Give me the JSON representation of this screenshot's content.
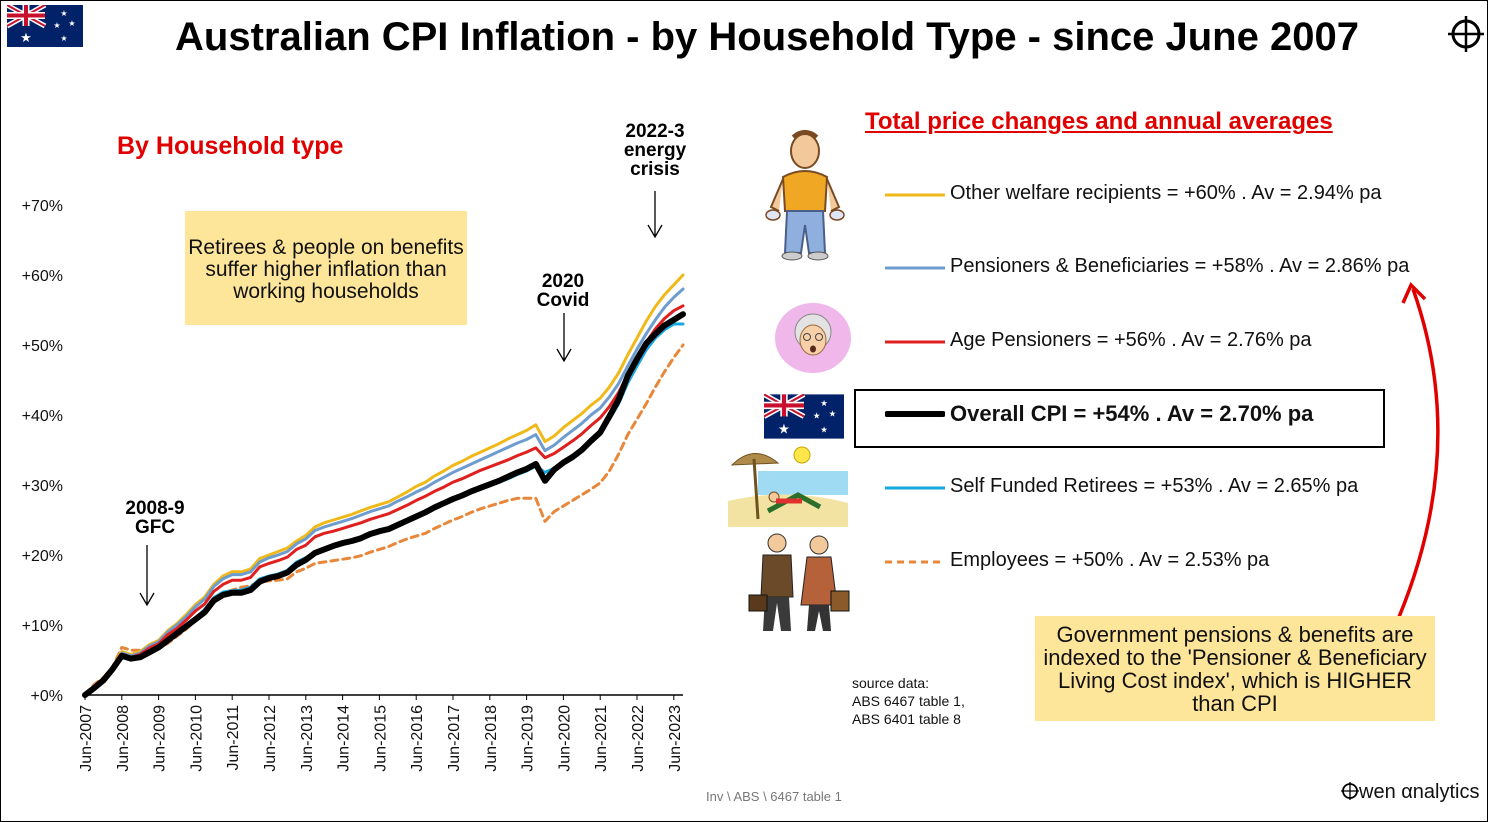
{
  "title": "Australian CPI Inflation - by Household Type - since June 2007",
  "subtitle": "By Household type",
  "callout_left": "Retirees & people on benefits suffer higher inflation than working households",
  "events": {
    "gfc_line1": "2008-9",
    "gfc_line2": "GFC",
    "covid_line1": "2020",
    "covid_line2": "Covid",
    "energy_line1": "2022-3",
    "energy_line2": "energy",
    "energy_line3": "crisis"
  },
  "legend": {
    "heading": "Total price changes and annual averages",
    "items": [
      {
        "label": "Other welfare recipients = +60% . Av =  2.94% pa",
        "color": "#f0b91a",
        "style": "solid"
      },
      {
        "label": "Pensioners & Beneficiaries = +58% . Av =  2.86% pa",
        "color": "#6d9ccf",
        "style": "solid"
      },
      {
        "label": "Age Pensioners  =  +56% . Av =  2.76% pa",
        "color": "#e01f1f",
        "style": "solid"
      },
      {
        "label": "Overall CPI = +54% . Av =  2.70% pa",
        "color": "#000000",
        "style": "solid-bold"
      },
      {
        "label": "Self Funded Retirees = +53% . Av =  2.65% pa",
        "color": "#15a9e1",
        "style": "solid"
      },
      {
        "label": "Employees = +50% . Av =  2.53% pa",
        "color": "#e8873a",
        "style": "dashed"
      }
    ]
  },
  "callout_right": "Government pensions & benefits are indexed to the 'Pensioner & Beneficiary Living Cost index', which is HIGHER than CPI",
  "source": {
    "line1": "source data:",
    "line2": "ABS  6467 table 1,",
    "line3": "ABS 6401 table 8"
  },
  "footer": "Inv \\ ABS \\ 6467 table 1",
  "brand": "wen αnalytics",
  "chart_data": {
    "type": "line",
    "title": "Australian CPI Inflation - by Household Type - since June 2007",
    "ylim": [
      0,
      70
    ],
    "yticks": [
      0,
      10,
      20,
      30,
      40,
      50,
      60,
      70
    ],
    "ytick_labels": [
      "+0%",
      "+10%",
      "+20%",
      "+30%",
      "+40%",
      "+50%",
      "+60%",
      "+70%"
    ],
    "x_tick_labels": [
      "Jun-2007",
      "Jun-2008",
      "Jun-2009",
      "Jun-2010",
      "Jun-2011",
      "Jun-2012",
      "Jun-2013",
      "Jun-2014",
      "Jun-2015",
      "Jun-2016",
      "Jun-2017",
      "Jun-2018",
      "Jun-2019",
      "Jun-2020",
      "Jun-2021",
      "Jun-2022",
      "Jun-2023"
    ],
    "x_start_year": 2007.5,
    "x_end_year": 2023.75,
    "x": [
      2007.5,
      2007.75,
      2008.0,
      2008.25,
      2008.5,
      2008.75,
      2009.0,
      2009.25,
      2009.5,
      2009.75,
      2010.0,
      2010.25,
      2010.5,
      2010.75,
      2011.0,
      2011.25,
      2011.5,
      2011.75,
      2012.0,
      2012.25,
      2012.5,
      2012.75,
      2013.0,
      2013.25,
      2013.5,
      2013.75,
      2014.0,
      2014.25,
      2014.5,
      2014.75,
      2015.0,
      2015.25,
      2015.5,
      2015.75,
      2016.0,
      2016.25,
      2016.5,
      2016.75,
      2017.0,
      2017.25,
      2017.5,
      2017.75,
      2018.0,
      2018.25,
      2018.5,
      2018.75,
      2019.0,
      2019.25,
      2019.5,
      2019.75,
      2020.0,
      2020.25,
      2020.5,
      2020.75,
      2021.0,
      2021.25,
      2021.5,
      2021.75,
      2022.0,
      2022.25,
      2022.5,
      2022.75,
      2023.0,
      2023.25,
      2023.5,
      2023.75
    ],
    "series": [
      {
        "name": "Other welfare recipients",
        "color": "#f0b91a",
        "dash": "",
        "width": 3,
        "values": [
          0,
          1.2,
          2.4,
          4.0,
          6.2,
          5.8,
          6.2,
          7.2,
          7.8,
          9.2,
          10.2,
          11.5,
          12.9,
          14.0,
          15.8,
          17.0,
          17.6,
          17.6,
          18.0,
          19.5,
          20.0,
          20.5,
          21.0,
          22.0,
          22.8,
          24.0,
          24.6,
          25.0,
          25.4,
          25.8,
          26.3,
          26.8,
          27.2,
          27.6,
          28.3,
          29.0,
          29.8,
          30.4,
          31.3,
          32.0,
          32.8,
          33.4,
          34.1,
          34.7,
          35.3,
          35.9,
          36.6,
          37.2,
          37.8,
          38.6,
          36.2,
          37.0,
          38.2,
          39.2,
          40.2,
          41.4,
          42.4,
          44.0,
          46.0,
          48.6,
          51.0,
          53.4,
          55.5,
          57.2,
          58.6,
          60.0
        ]
      },
      {
        "name": "Pensioners & Beneficiaries",
        "color": "#6d9ccf",
        "dash": "",
        "width": 3,
        "values": [
          0,
          1.2,
          2.3,
          3.9,
          6.0,
          5.6,
          6.0,
          7.0,
          7.6,
          9.0,
          10.0,
          11.2,
          12.6,
          13.7,
          15.5,
          16.6,
          17.2,
          17.2,
          17.6,
          19.0,
          19.6,
          20.0,
          20.5,
          21.6,
          22.3,
          23.5,
          24.0,
          24.4,
          24.8,
          25.2,
          25.7,
          26.2,
          26.6,
          27.0,
          27.7,
          28.3,
          29.0,
          29.6,
          30.4,
          31.1,
          31.8,
          32.4,
          33.0,
          33.6,
          34.2,
          34.8,
          35.4,
          36.0,
          36.5,
          37.2,
          34.9,
          35.7,
          36.8,
          37.8,
          38.8,
          40.0,
          41.0,
          42.6,
          44.5,
          47.0,
          49.4,
          51.6,
          53.6,
          55.4,
          56.8,
          58.0
        ]
      },
      {
        "name": "Age Pensioners",
        "color": "#e01f1f",
        "dash": "",
        "width": 3,
        "values": [
          0,
          1.1,
          2.2,
          3.8,
          5.8,
          5.4,
          5.8,
          6.7,
          7.3,
          8.6,
          9.5,
          10.7,
          12.0,
          13.0,
          14.8,
          15.8,
          16.4,
          16.4,
          16.8,
          18.3,
          18.8,
          19.2,
          19.7,
          20.8,
          21.4,
          22.6,
          23.1,
          23.4,
          23.8,
          24.2,
          24.6,
          25.1,
          25.5,
          25.9,
          26.5,
          27.1,
          27.8,
          28.4,
          29.1,
          29.7,
          30.4,
          30.9,
          31.5,
          32.1,
          32.6,
          33.1,
          33.6,
          34.2,
          34.7,
          35.3,
          33.9,
          34.5,
          35.4,
          36.3,
          37.3,
          38.5,
          39.6,
          41.2,
          43.2,
          45.8,
          48.2,
          50.4,
          52.3,
          53.8,
          54.9,
          55.6
        ]
      },
      {
        "name": "Overall CPI",
        "color": "#000000",
        "dash": "",
        "width": 6,
        "values": [
          0,
          1.0,
          2.1,
          3.7,
          5.6,
          5.2,
          5.4,
          6.1,
          6.8,
          7.8,
          8.8,
          9.8,
          10.8,
          11.8,
          13.5,
          14.3,
          14.6,
          14.6,
          15.0,
          16.2,
          16.7,
          17.0,
          17.5,
          18.6,
          19.3,
          20.3,
          20.8,
          21.3,
          21.7,
          22.0,
          22.4,
          23.0,
          23.4,
          23.7,
          24.3,
          24.9,
          25.5,
          26.1,
          26.8,
          27.4,
          28.0,
          28.5,
          29.1,
          29.6,
          30.1,
          30.6,
          31.2,
          31.8,
          32.3,
          33.0,
          30.6,
          32.2,
          33.2,
          34.0,
          35.0,
          36.3,
          37.5,
          39.8,
          42.2,
          45.6,
          48.0,
          50.2,
          51.6,
          52.8,
          53.6,
          54.4
        ]
      },
      {
        "name": "Self Funded Retirees",
        "color": "#15a9e1",
        "dash": "",
        "width": 3,
        "values": [
          0,
          1.1,
          2.2,
          3.8,
          5.8,
          5.4,
          5.6,
          6.3,
          7.0,
          8.0,
          9.0,
          10.0,
          11.0,
          12.2,
          13.9,
          14.7,
          14.9,
          15.0,
          15.4,
          16.6,
          17.0,
          17.3,
          17.8,
          19.0,
          19.6,
          20.4,
          20.9,
          21.3,
          21.6,
          21.9,
          22.3,
          22.8,
          23.2,
          23.6,
          24.2,
          24.8,
          25.4,
          26.0,
          26.6,
          27.2,
          27.8,
          28.3,
          28.9,
          29.4,
          29.9,
          30.4,
          30.9,
          31.5,
          32.0,
          32.7,
          31.8,
          32.4,
          33.2,
          34.0,
          35.0,
          36.2,
          37.4,
          39.4,
          41.6,
          44.6,
          47.0,
          49.3,
          51.0,
          52.2,
          53.0,
          53.0
        ]
      },
      {
        "name": "Employees",
        "color": "#e8873a",
        "dash": "7 5",
        "width": 3,
        "values": [
          0,
          1.5,
          2.5,
          4.0,
          6.8,
          6.4,
          6.4,
          6.0,
          6.6,
          7.4,
          8.4,
          9.4,
          10.6,
          11.6,
          13.4,
          14.6,
          15.0,
          15.4,
          15.6,
          16.2,
          16.3,
          16.4,
          16.6,
          17.6,
          18.1,
          18.8,
          19.0,
          19.2,
          19.4,
          19.6,
          19.9,
          20.4,
          20.8,
          21.2,
          21.8,
          22.3,
          22.7,
          23.1,
          23.8,
          24.4,
          25.0,
          25.5,
          26.1,
          26.6,
          27.0,
          27.4,
          27.8,
          28.1,
          28.1,
          28.1,
          24.8,
          26.2,
          27.0,
          27.8,
          28.6,
          29.4,
          30.3,
          32.0,
          34.4,
          37.2,
          39.4,
          41.6,
          44.0,
          46.2,
          48.2,
          50.0
        ]
      }
    ]
  }
}
